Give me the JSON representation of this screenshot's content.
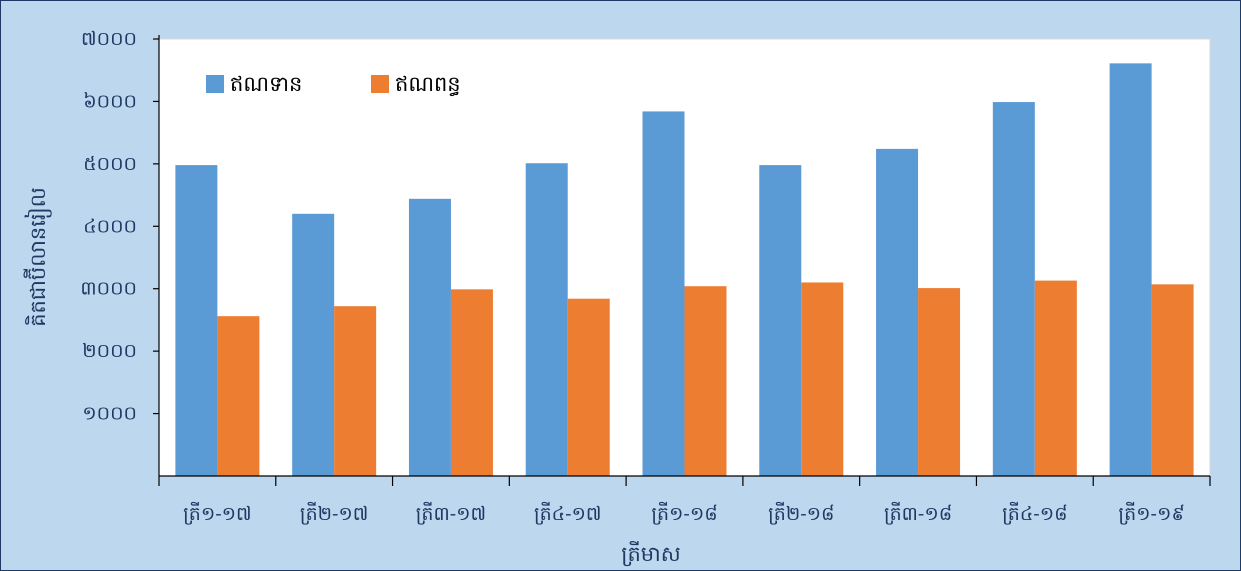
{
  "chart_data": {
    "type": "bar",
    "title": "",
    "xlabel": "ត្រីមាស",
    "ylabel": "គិតជាប៊ីលានរៀល",
    "categories": [
      "ត្រី១-១៧",
      "ត្រី២-១៧",
      "ត្រី៣-១៧",
      "ត្រី៤-១៧",
      "ត្រី១-១៨",
      "ត្រី២-១៨",
      "ត្រី៣-១៨",
      "ត្រី៤-១៨",
      "ត្រី១-១៩"
    ],
    "series": [
      {
        "name": "ឥណទាន",
        "color": "#5b9bd5",
        "values": [
          4980,
          4200,
          4440,
          5010,
          5840,
          4980,
          5240,
          5990,
          6610
        ]
      },
      {
        "name": "ឥណពន្ធ",
        "color": "#ed7d31",
        "values": [
          2560,
          2720,
          2990,
          2840,
          3040,
          3100,
          3010,
          3130,
          3070
        ]
      }
    ],
    "ylim": [
      0,
      7000
    ],
    "yticks": [
      1000,
      2000,
      3000,
      4000,
      5000,
      6000,
      7000
    ],
    "ytick_labels": [
      "១០០០",
      "២០០០",
      "៣០០០",
      "៤០០០",
      "៥០០០",
      "៦០០០",
      "៧០០០"
    ],
    "grid": false,
    "legend_position": "top-left"
  }
}
